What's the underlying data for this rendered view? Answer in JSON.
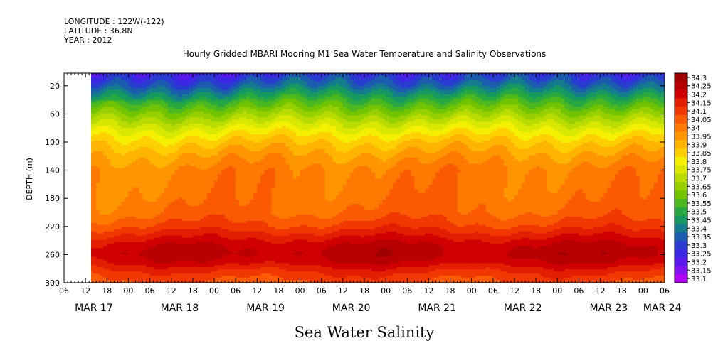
{
  "header": {
    "longitude": "LONGITUDE : 122W(-122)",
    "latitude": "LATITUDE : 36.8N",
    "year": "YEAR : 2012"
  },
  "chart_data": {
    "type": "heatmap",
    "title": "Hourly Gridded MBARI Mooring M1 Sea Water Temperature and Salinity Observations",
    "xlabel": "Sea Water Salinity",
    "ylabel": "DEPTH (m)",
    "ylim": [
      300,
      2
    ],
    "yticks": [
      20,
      60,
      100,
      140,
      180,
      220,
      260,
      300
    ],
    "xlim_hours": [
      0,
      168
    ],
    "data_start_hour": 7,
    "hour_tick_labels": [
      "06",
      "12",
      "18",
      "00",
      "06",
      "12",
      "18",
      "00",
      "06",
      "12",
      "18",
      "00",
      "06",
      "12",
      "18",
      "00",
      "06",
      "12",
      "18",
      "00",
      "06",
      "12",
      "18",
      "00",
      "06",
      "12",
      "18",
      "00",
      "06"
    ],
    "date_labels": [
      {
        "text": "MAR 17",
        "hour": 3
      },
      {
        "text": "MAR 18",
        "hour": 27
      },
      {
        "text": "MAR 19",
        "hour": 51
      },
      {
        "text": "MAR 20",
        "hour": 75
      },
      {
        "text": "MAR 21",
        "hour": 99
      },
      {
        "text": "MAR 22",
        "hour": 123
      },
      {
        "text": "MAR 23",
        "hour": 147
      },
      {
        "text": "MAR 24",
        "hour": 162
      }
    ],
    "colorbar": {
      "levels": [
        "34.3",
        "34.25",
        "34.2",
        "34.15",
        "34.1",
        "34.05",
        "34",
        "33.95",
        "33.9",
        "33.85",
        "33.8",
        "33.75",
        "33.7",
        "33.65",
        "33.6",
        "33.55",
        "33.5",
        "33.45",
        "33.4",
        "33.35",
        "33.3",
        "33.25",
        "33.2",
        "33.15",
        "33.1"
      ],
      "colors": [
        "#a00000",
        "#b80000",
        "#d00000",
        "#e41e00",
        "#f03800",
        "#fa5a00",
        "#ff7800",
        "#ff9600",
        "#ffb400",
        "#ffd000",
        "#f4f000",
        "#d8e800",
        "#b8dc00",
        "#96d000",
        "#72c400",
        "#4cb820",
        "#28a840",
        "#169862",
        "#147c8c",
        "#1c5cae",
        "#283cd0",
        "#3c28e4",
        "#5a18ee",
        "#8010f2",
        "#b200f8"
      ]
    },
    "profile": {
      "depth": [
        2,
        20,
        40,
        60,
        80,
        100,
        120,
        140,
        160,
        180,
        200,
        210,
        220,
        230,
        240,
        250,
        260,
        270,
        280,
        290,
        300
      ],
      "salinity": [
        33.3,
        33.4,
        33.55,
        33.68,
        33.8,
        33.9,
        33.97,
        34.02,
        34.03,
        34.04,
        34.06,
        34.09,
        34.12,
        34.17,
        34.22,
        34.26,
        34.27,
        34.24,
        34.18,
        34.13,
        34.1
      ]
    }
  }
}
